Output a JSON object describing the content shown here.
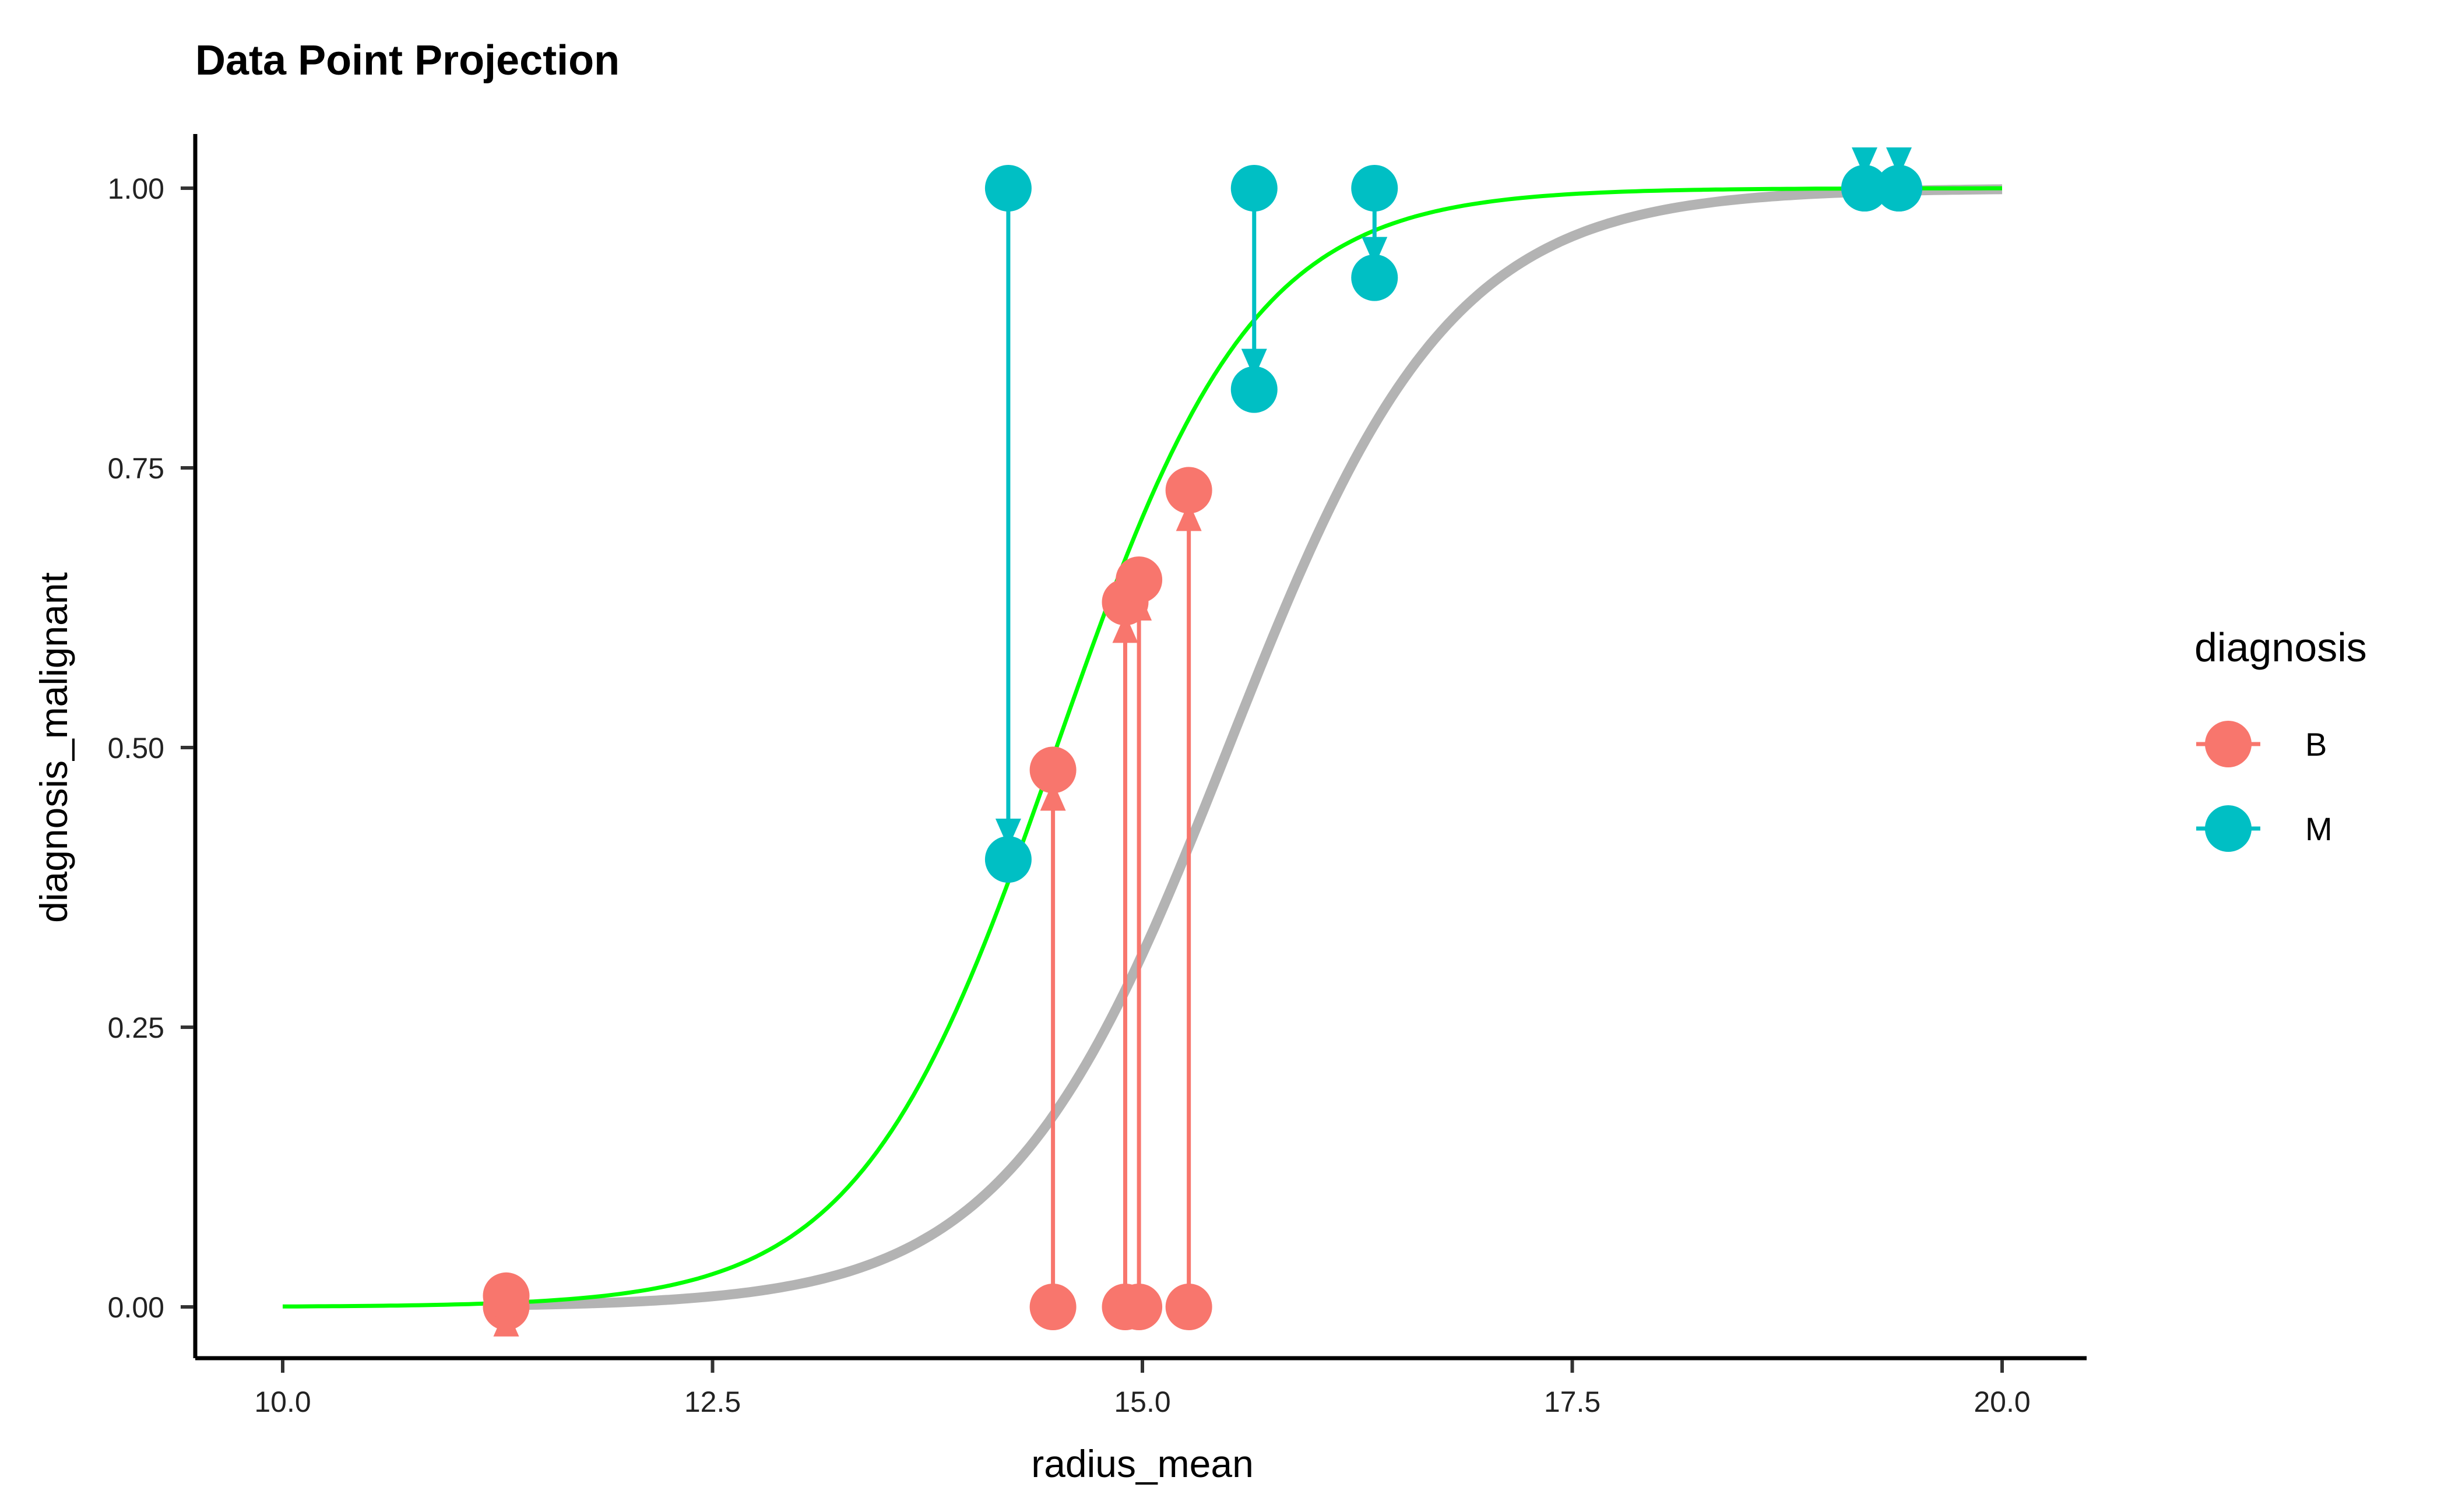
{
  "chart_data": {
    "type": "scatter",
    "title": "Data Point Projection",
    "xlabel": "radius_mean",
    "ylabel": "diagnosis_malignant",
    "xlim": [
      9.0,
      21.0
    ],
    "ylim": [
      -0.1,
      1.1
    ],
    "x_ticks": [
      10.0,
      12.5,
      15.0,
      17.5,
      20.0
    ],
    "x_tick_labels": [
      "10.0",
      "12.5",
      "15.0",
      "17.5",
      "20.0"
    ],
    "y_ticks": [
      0.0,
      0.25,
      0.5,
      0.75,
      1.0
    ],
    "y_tick_labels": [
      "0.00",
      "0.25",
      "0.50",
      "0.75",
      "1.00"
    ],
    "grid": false,
    "legend": {
      "title": "diagnosis",
      "placement": "right",
      "entries": [
        {
          "label": "B",
          "color": "#F8766D"
        },
        {
          "label": "M",
          "color": "#00BFC4"
        }
      ]
    },
    "curves": [
      {
        "color": "#B3B3B3",
        "x_range": [
          11.3,
          20.0
        ],
        "midpoint": 15.5,
        "slope": 1.55
      },
      {
        "color": "#00FF00",
        "x_range": [
          10.0,
          20.0
        ],
        "midpoint": 14.5,
        "slope": 1.75
      }
    ],
    "series": [
      {
        "name": "B",
        "color": "#F8766D",
        "points": [
          {
            "x": 11.3,
            "y": 0.0,
            "y_proj": 0.01
          },
          {
            "x": 14.48,
            "y": 0.0,
            "y_proj": 0.48
          },
          {
            "x": 14.9,
            "y": 0.0,
            "y_proj": 0.63
          },
          {
            "x": 14.98,
            "y": 0.0,
            "y_proj": 0.65
          },
          {
            "x": 15.27,
            "y": 0.0,
            "y_proj": 0.73
          }
        ]
      },
      {
        "name": "M",
        "color": "#00BFC4",
        "points": [
          {
            "x": 14.22,
            "y": 1.0,
            "y_proj": 0.4
          },
          {
            "x": 15.65,
            "y": 1.0,
            "y_proj": 0.82
          },
          {
            "x": 16.35,
            "y": 1.0,
            "y_proj": 0.92
          },
          {
            "x": 19.2,
            "y": 1.0,
            "y_proj": 1.0
          },
          {
            "x": 19.4,
            "y": 1.0,
            "y_proj": 1.0
          }
        ]
      }
    ]
  }
}
